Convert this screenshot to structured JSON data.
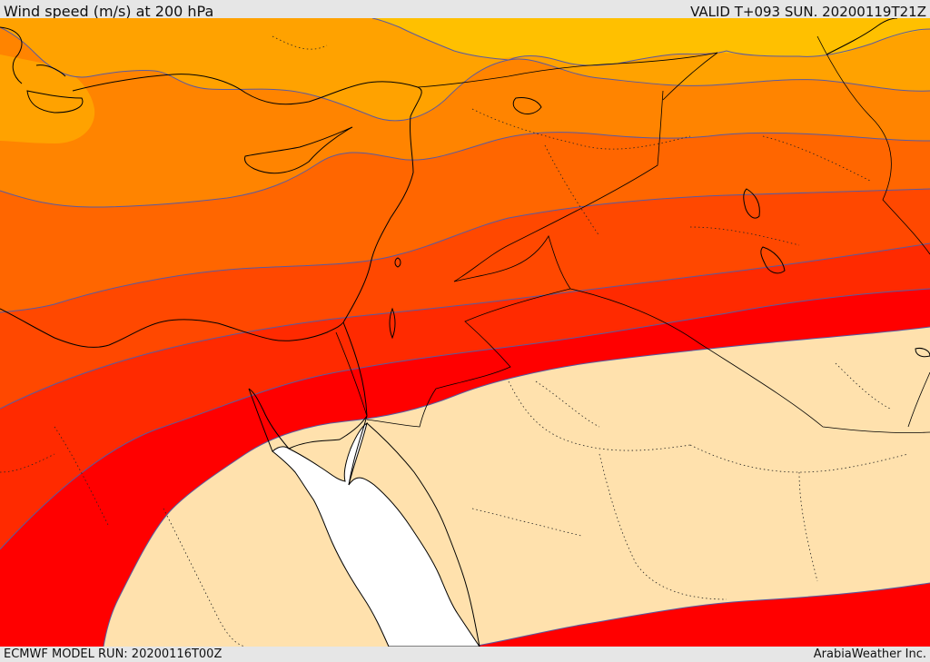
{
  "header": {
    "title": "Wind speed (m/s) at 200 hPa",
    "valid_time": "VALID T+093 SUN. 20200119T21Z"
  },
  "footer": {
    "model_run": "ECMWF MODEL RUN: 20200116T00Z",
    "credit": "ArabiaWeather Inc."
  },
  "map": {
    "region": "Eastern Mediterranean / Levant / Red Sea",
    "field": "wind speed",
    "level_hPa": 200,
    "colors": {
      "band_1": "#ffc000",
      "band_2": "#ffa200",
      "band_3": "#ff8400",
      "band_4": "#ff6600",
      "band_5": "#ff4800",
      "band_6": "#ff2a00",
      "band_7": "#ff0000",
      "low": "#ffe1ad",
      "sea": "#ffffff",
      "contour": "#5a5aa0",
      "coast": "#000000"
    }
  }
}
